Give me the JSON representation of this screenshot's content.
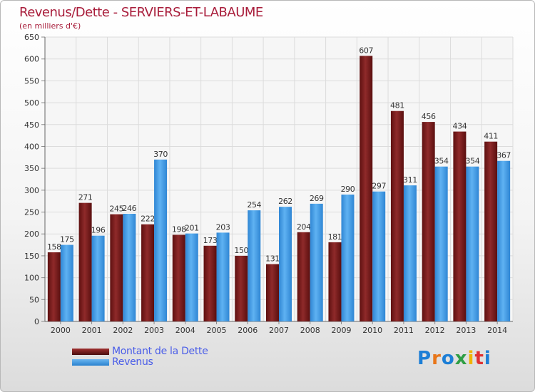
{
  "chart_data": {
    "type": "bar",
    "title": "Revenus/Dette - SERVIERS-ET-LABAUME",
    "subtitle": "(en milliers d'€)",
    "categories": [
      "2000",
      "2001",
      "2002",
      "2003",
      "2004",
      "2005",
      "2006",
      "2007",
      "2008",
      "2009",
      "2010",
      "2011",
      "2012",
      "2013",
      "2014"
    ],
    "series": [
      {
        "name": "Montant de la Dette",
        "color": "#7b1f1f",
        "values": [
          158,
          271,
          245,
          222,
          198,
          173,
          150,
          131,
          204,
          181,
          607,
          481,
          456,
          434,
          411
        ]
      },
      {
        "name": "Revenus",
        "color": "#3d9be8",
        "values": [
          175,
          196,
          246,
          370,
          201,
          203,
          254,
          262,
          269,
          290,
          297,
          311,
          354,
          354,
          367
        ]
      }
    ],
    "ylim": [
      0,
      650
    ],
    "yticks": [
      0,
      50,
      100,
      150,
      200,
      250,
      300,
      350,
      400,
      450,
      500,
      550,
      600,
      650
    ],
    "grid": true,
    "legend_position": "bottom-left"
  },
  "legend": {
    "debt_label": "Montant de la Dette",
    "revenue_label": "Revenus"
  },
  "logo": {
    "letters": [
      "P",
      "r",
      "o",
      "x",
      "i",
      "t",
      "i"
    ]
  }
}
